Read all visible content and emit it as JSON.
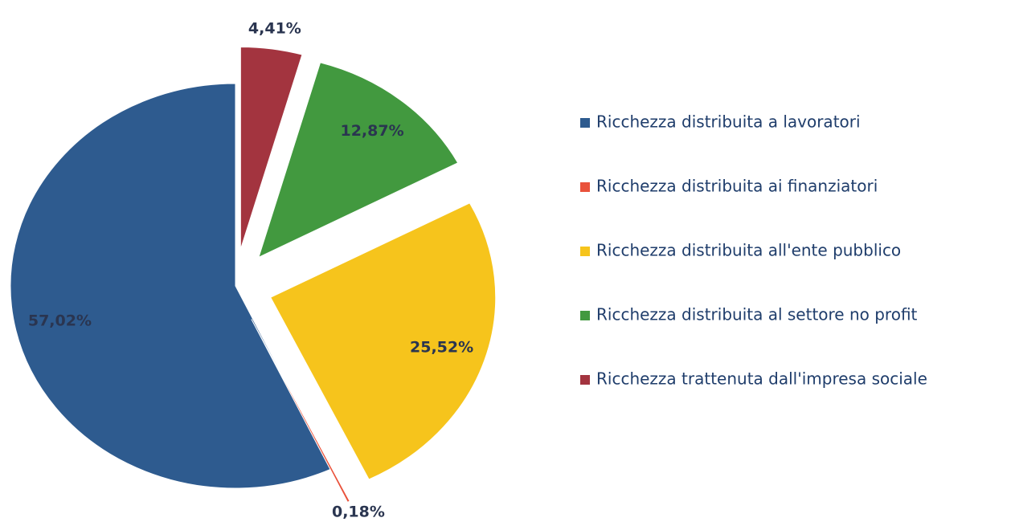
{
  "chart_data": {
    "type": "pie",
    "categories": [
      "Ricchezza distribuita a lavoratori",
      "Ricchezza distribuita ai finanziatori",
      "Ricchezza distribuita all'ente pubblico",
      "Ricchezza distribuita al settore no profit",
      "Ricchezza trattenuta dall'impresa sociale"
    ],
    "values": [
      57.02,
      0.18,
      25.52,
      12.87,
      4.41
    ],
    "value_labels": [
      "57,02%",
      "0,18%",
      "25,52%",
      "12,87%",
      "4,41%"
    ],
    "colors": [
      "#2e5b8f",
      "#e9523b",
      "#f6c41c",
      "#42993f",
      "#a3343f"
    ],
    "legend": "right"
  }
}
